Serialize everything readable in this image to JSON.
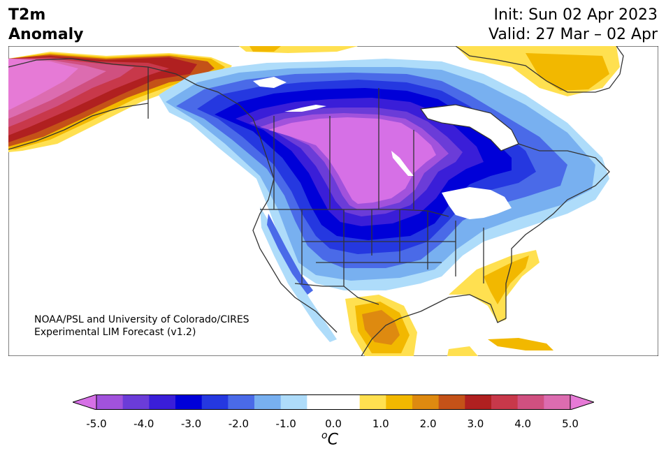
{
  "header": {
    "variable": "T2m",
    "field": "Anomaly",
    "init": "Init: Sun 02 Apr 2023",
    "valid": "Valid: 27 Mar – 02 Apr"
  },
  "credit": {
    "line1": "NOAA/PSL and University of Colorado/CIRES",
    "line2": "Experimental LIM Forecast (v1.2)"
  },
  "colorbar": {
    "ticks": [
      "-5.0",
      "-4.0",
      "-3.0",
      "-2.0",
      "-1.0",
      "0.0",
      "1.0",
      "2.0",
      "3.0",
      "4.0",
      "5.0"
    ],
    "unit_base": "C",
    "unit_sup": "o",
    "colors": [
      "#d670e6",
      "#a152dc",
      "#6b3cd8",
      "#3a1ed8",
      "#0000d8",
      "#2538e0",
      "#4a6ae8",
      "#78b0f0",
      "#aedcfa",
      "#ffffff",
      "#ffffff",
      "#ffe050",
      "#f2b800",
      "#de8a10",
      "#c45218",
      "#b02020",
      "#c8384a",
      "#d05080",
      "#dc6cb0",
      "#e67ad6"
    ]
  },
  "map": {
    "region": "North America",
    "colors": {
      "land_outline": "#333333",
      "cold_1": "#aedcfa",
      "cold_2": "#78b0f0",
      "cold_3": "#4a6ae8",
      "cold_4": "#2538e0",
      "cold_5": "#0000d8",
      "cold_6": "#3a1ed8",
      "cold_7": "#6b3cd8",
      "cold_8": "#a152dc",
      "cold_9": "#d670e6",
      "warm_1": "#ffe050",
      "warm_2": "#f2b800",
      "warm_3": "#de8a10",
      "warm_4": "#c45218",
      "warm_5": "#b02020",
      "warm_6": "#c8384a",
      "warm_7": "#d05080",
      "warm_8": "#dc6cb0",
      "warm_9": "#e67ad6"
    }
  }
}
